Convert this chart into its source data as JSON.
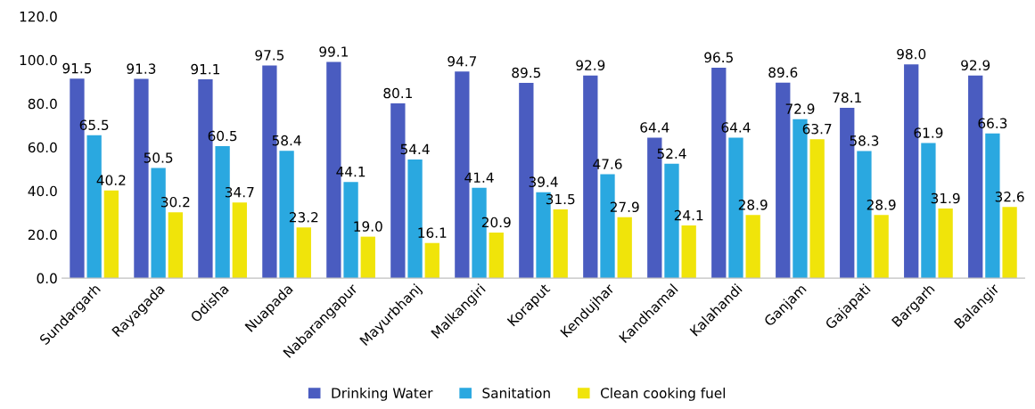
{
  "chart_data": {
    "type": "bar",
    "categories": [
      "Sundargarh",
      "Rayagada",
      "Odisha",
      "Nuapada",
      "Nabarangapur",
      "Mayurbhanj",
      "Malkangiri",
      "Koraput",
      "Kendujhar",
      "Kandhamal",
      "Kalahandi",
      "Ganjam",
      "Gajapati",
      "Bargarh",
      "Balangir"
    ],
    "series": [
      {
        "name": "Drinking Water",
        "color": "#4a5cc0",
        "values": [
          91.5,
          91.3,
          91.1,
          97.5,
          99.1,
          80.1,
          94.7,
          89.5,
          92.9,
          64.4,
          96.5,
          89.6,
          78.1,
          98.0,
          92.9
        ],
        "value_labels": [
          "91.5",
          "91.3",
          "91.1",
          "97.5",
          "99.1",
          "80.1",
          "94.7",
          "89.5",
          "92.9",
          "64.4",
          "96.5",
          "89.6",
          "78.1",
          "98.0",
          "92.9"
        ]
      },
      {
        "name": "Sanitation",
        "color": "#2aa8e0",
        "values": [
          65.5,
          50.5,
          60.5,
          58.4,
          44.1,
          54.4,
          41.4,
          39.4,
          47.6,
          52.4,
          64.4,
          72.9,
          58.3,
          61.9,
          66.3
        ],
        "value_labels": [
          "65.5",
          "50.5",
          "60.5",
          "58.4",
          "44.1",
          "54.4",
          "41.4",
          "39.4",
          "47.6",
          "52.4",
          "64.4",
          "72.9",
          "58.3",
          "61.9",
          "66.3"
        ]
      },
      {
        "name": "Clean cooking fuel",
        "color": "#f0e40a",
        "values": [
          40.2,
          30.2,
          34.7,
          23.2,
          19.0,
          16.1,
          20.9,
          31.5,
          27.9,
          24.1,
          28.9,
          63.7,
          28.9,
          31.9,
          32.6
        ],
        "value_labels": [
          "40.2",
          "30.2",
          "34.7",
          "23.2",
          "19.0",
          "16.1",
          "20.9",
          "31.5",
          "27.9",
          "24.1",
          "28.9",
          "63.7",
          "28.9",
          "31.9",
          "32.6"
        ]
      }
    ],
    "ylim": [
      0,
      120
    ],
    "yticks": [
      {
        "value": 0,
        "label": "0.0"
      },
      {
        "value": 20,
        "label": "20.0"
      },
      {
        "value": 40,
        "label": "40.0"
      },
      {
        "value": 60,
        "label": "60.0"
      },
      {
        "value": 80,
        "label": "80.0"
      },
      {
        "value": 100,
        "label": "100.0"
      },
      {
        "value": 120,
        "label": "120.0"
      }
    ],
    "grid": false,
    "legend": "bottom"
  }
}
